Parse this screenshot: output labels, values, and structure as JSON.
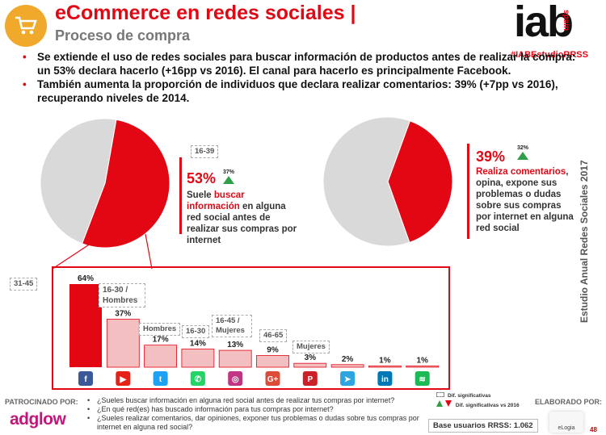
{
  "header": {
    "title": "eCommerce en redes sociales |",
    "subtitle": "Proceso de compra",
    "logo_text": "iab",
    "logo_sub": "spain",
    "hashtag": "#IABEstudioRRSS",
    "cart_icon": "shopping-cart-icon"
  },
  "bullets": [
    "Se extiende el uso de redes sociales para buscar información de productos antes de realizar la compra: un 53% declara hacerlo (+16pp vs 2016). El canal para hacerlo es principalmente Facebook.",
    "También aumenta la proporción de individuos que declara realizar comentarios: 39% (+7pp vs 2016), recuperando niveles de 2014."
  ],
  "side_label": "Estudio Anual Redes Sociales 2017",
  "colors": {
    "red": "#e30613",
    "grey": "#d9d9d9",
    "pink": "#f4bfc0",
    "green": "#2e9e47"
  },
  "chart_data": [
    {
      "type": "pie",
      "values": [
        53,
        47
      ],
      "labels": [
        "Suele buscar información en alguna red social antes de realizar sus compras por internet",
        ""
      ],
      "highlight_pct": "53%",
      "prev_value": "37%",
      "segment_tag": "16-39",
      "callout_pre": "Suele ",
      "callout_red": "buscar información",
      "callout_post": " en alguna red social antes de realizar sus compras por internet"
    },
    {
      "type": "pie",
      "values": [
        39,
        61
      ],
      "highlight_pct": "39%",
      "prev_value": "32%",
      "callout_red": "Realiza comentarios",
      "callout_post": ", opina, expone sus problemas o dudas sobre sus compras por internet en alguna red social"
    },
    {
      "type": "bar",
      "categories": [
        "Facebook",
        "YouTube",
        "Twitter",
        "WhatsApp",
        "Instagram",
        "Google+",
        "Pinterest",
        "Telegram",
        "LinkedIn",
        "Spotify"
      ],
      "values": [
        64,
        37,
        17,
        14,
        13,
        9,
        3,
        2,
        1,
        1
      ],
      "value_labels": [
        "64%",
        "37%",
        "17%",
        "14%",
        "13%",
        "9%",
        "3%",
        "2%",
        "1%",
        "1%"
      ],
      "segment_tags": [
        "31-45",
        "16-30 / Hombres",
        "Hombres",
        "16-30",
        "16-45 / Mujeres",
        "46-65",
        "Mujeres",
        "",
        "",
        ""
      ],
      "ylim": [
        0,
        64
      ]
    }
  ],
  "footer": {
    "sponsor_label": "PATROCINADO POR:",
    "sponsor_name": "adglow",
    "questions": [
      "¿Sueles buscar información en alguna red social antes de realizar tus compras por internet?",
      "¿En qué red(es) has buscado información para tus compras por internet?",
      "¿Sueles realizar comentarios, dar opiniones, exponer tus problemas o dudas sobre tus compras por internet en alguna red social?"
    ],
    "legend_sig": "Dif. significativas",
    "legend_sig_vs": "Dif. significativas vs 2016",
    "base": "Base usuarios RRSS: 1.062",
    "elab_label": "ELABORADO POR:",
    "elab_name": "eLogia",
    "page": "48"
  }
}
